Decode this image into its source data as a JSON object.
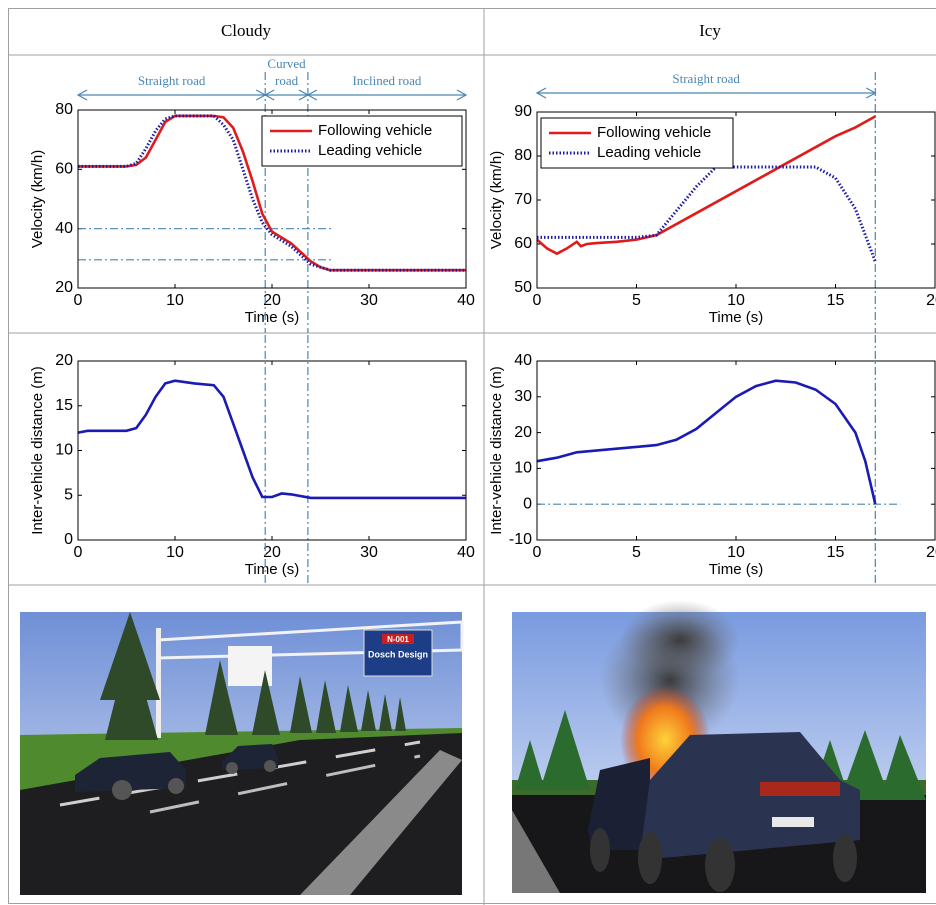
{
  "header": {
    "columns": [
      "Cloudy",
      "Icy"
    ]
  },
  "chart_data": [
    {
      "type": "line",
      "x_label": "Time (s)",
      "y_label": "Velocity (km/h)",
      "x": [
        0,
        5,
        6,
        7,
        8,
        9,
        10,
        12,
        14,
        15,
        16,
        17,
        18,
        19,
        20,
        21,
        22,
        23,
        24,
        25,
        26,
        30,
        35,
        40
      ],
      "series": [
        {
          "name": "Following vehicle",
          "color": "#e01b1b",
          "style": "solid",
          "values": [
            61,
            61,
            61.5,
            64,
            70,
            76,
            78,
            78,
            78,
            77.5,
            74,
            66,
            56,
            45,
            39,
            37,
            35,
            32,
            29,
            27,
            26,
            26,
            26,
            26
          ]
        },
        {
          "name": "Leading vehicle",
          "color": "#1a1aa8",
          "style": "dotted",
          "values": [
            61,
            61,
            62,
            67,
            73,
            77,
            78,
            78,
            78,
            75,
            70,
            60,
            50,
            42,
            38,
            36,
            34,
            31,
            28,
            27,
            26,
            26,
            26,
            26
          ]
        }
      ],
      "xlim": [
        0,
        40
      ],
      "ylim": [
        20,
        80
      ],
      "xticks": [
        0,
        10,
        20,
        30,
        40
      ],
      "yticks": [
        20,
        40,
        60,
        80
      ],
      "legend": "upper right",
      "regions": [
        {
          "label": "Straight road",
          "range": [
            0,
            19.3
          ]
        },
        {
          "label": "Curved road",
          "range": [
            19.3,
            23.7
          ]
        },
        {
          "label": "Inclined road",
          "range": [
            23.7,
            40
          ]
        }
      ],
      "hlines": [
        40,
        29.5
      ],
      "vlines": [
        19.3,
        23.7
      ]
    },
    {
      "type": "line",
      "x_label": "Time (s)",
      "y_label": "Velocity (km/h)",
      "x": [
        0,
        0.5,
        1,
        1.5,
        2,
        2.2,
        2.5,
        3,
        4,
        5,
        6,
        8,
        9,
        10,
        12,
        14,
        15,
        16,
        17
      ],
      "series": [
        {
          "name": "Following vehicle",
          "color": "#e01b1b",
          "style": "solid",
          "values": [
            61,
            59,
            57.8,
            59,
            60.5,
            59.5,
            60,
            60.2,
            60.5,
            61,
            62,
            67,
            69.5,
            72,
            77,
            82,
            84.5,
            86.5,
            89
          ]
        },
        {
          "name": "Leading vehicle",
          "color": "#1a1aa8",
          "style": "dotted",
          "values": [
            61.5,
            61.5,
            61.5,
            61.5,
            61.5,
            61.5,
            61.5,
            61.5,
            61.5,
            61.5,
            62,
            73,
            77.5,
            77.5,
            77.5,
            77.5,
            75,
            68,
            56
          ]
        }
      ],
      "xlim": [
        0,
        20
      ],
      "ylim": [
        50,
        90
      ],
      "xticks": [
        0,
        5,
        10,
        15,
        20
      ],
      "yticks": [
        50,
        60,
        70,
        80,
        90
      ],
      "legend": "upper left",
      "regions": [
        {
          "label": "Straight road",
          "range": [
            0,
            17
          ]
        }
      ],
      "hlines": [],
      "vlines": [
        17
      ]
    },
    {
      "type": "line",
      "x_label": "Time (s)",
      "y_label": "Inter-vehicle distance (m)",
      "x": [
        0,
        1,
        5,
        6,
        7,
        8,
        9,
        10,
        12,
        14,
        15,
        16,
        17,
        18,
        19,
        20,
        21,
        22,
        24,
        30,
        40
      ],
      "series": [
        {
          "name": null,
          "color": "#1a1ab4",
          "style": "solid",
          "values": [
            12,
            12.2,
            12.2,
            12.5,
            14,
            16,
            17.5,
            17.8,
            17.5,
            17.3,
            16,
            13,
            10,
            7,
            4.8,
            4.8,
            5.2,
            5.1,
            4.7,
            4.7,
            4.7
          ]
        }
      ],
      "xlim": [
        0,
        40
      ],
      "ylim": [
        0,
        20
      ],
      "xticks": [
        0,
        10,
        20,
        30,
        40
      ],
      "yticks": [
        0,
        5,
        10,
        15,
        20
      ],
      "hlines": [],
      "vlines": [
        19.3,
        23.7
      ]
    },
    {
      "type": "line",
      "x_label": "Time (s)",
      "y_label": "Inter-vehicle distance (m)",
      "x": [
        0,
        1,
        2,
        4,
        6,
        7,
        8,
        9,
        10,
        11,
        12,
        13,
        14,
        15,
        16,
        16.5,
        17
      ],
      "series": [
        {
          "name": null,
          "color": "#1a1ab4",
          "style": "solid",
          "values": [
            12,
            13,
            14.5,
            15.5,
            16.5,
            18,
            21,
            25.5,
            30,
            33,
            34.5,
            34,
            32,
            28,
            20,
            12,
            0
          ]
        }
      ],
      "xlim": [
        0,
        20
      ],
      "ylim": [
        -10,
        40
      ],
      "xticks": [
        0,
        5,
        10,
        15,
        20
      ],
      "yticks": [
        -10,
        0,
        10,
        20,
        30,
        40
      ],
      "hlines": [
        0
      ],
      "vlines": [
        17
      ]
    }
  ],
  "images": [
    {
      "sign_texts": [
        "N-001",
        "Dosch Design"
      ]
    }
  ]
}
